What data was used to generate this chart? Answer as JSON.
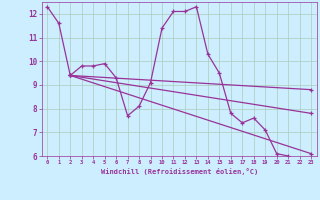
{
  "xlabel": "Windchill (Refroidissement éolien,°C)",
  "bg_color": "#cceeff",
  "grid_color": "#aaccbb",
  "line_color": "#993399",
  "xlim": [
    -0.5,
    23.5
  ],
  "ylim": [
    6,
    12.5
  ],
  "xticks": [
    0,
    1,
    2,
    3,
    4,
    5,
    6,
    7,
    8,
    9,
    10,
    11,
    12,
    13,
    14,
    15,
    16,
    17,
    18,
    19,
    20,
    21,
    22,
    23
  ],
  "yticks": [
    6,
    7,
    8,
    9,
    10,
    11,
    12
  ],
  "series": [
    {
      "x": [
        0,
        1,
        2,
        3,
        4,
        5,
        6,
        7,
        8,
        9,
        10,
        11,
        12,
        13,
        14,
        15,
        16,
        17,
        18,
        19,
        20,
        21,
        22
      ],
      "y": [
        12.3,
        11.6,
        9.4,
        9.8,
        9.8,
        9.9,
        9.3,
        7.7,
        8.1,
        9.1,
        11.4,
        12.1,
        12.1,
        12.3,
        10.3,
        9.5,
        7.8,
        7.4,
        7.6,
        7.1,
        6.1,
        6.0,
        null
      ]
    },
    {
      "x": [
        2,
        23
      ],
      "y": [
        9.4,
        6.1
      ]
    },
    {
      "x": [
        2,
        23
      ],
      "y": [
        9.4,
        7.8
      ]
    },
    {
      "x": [
        2,
        23
      ],
      "y": [
        9.4,
        8.8
      ]
    }
  ]
}
